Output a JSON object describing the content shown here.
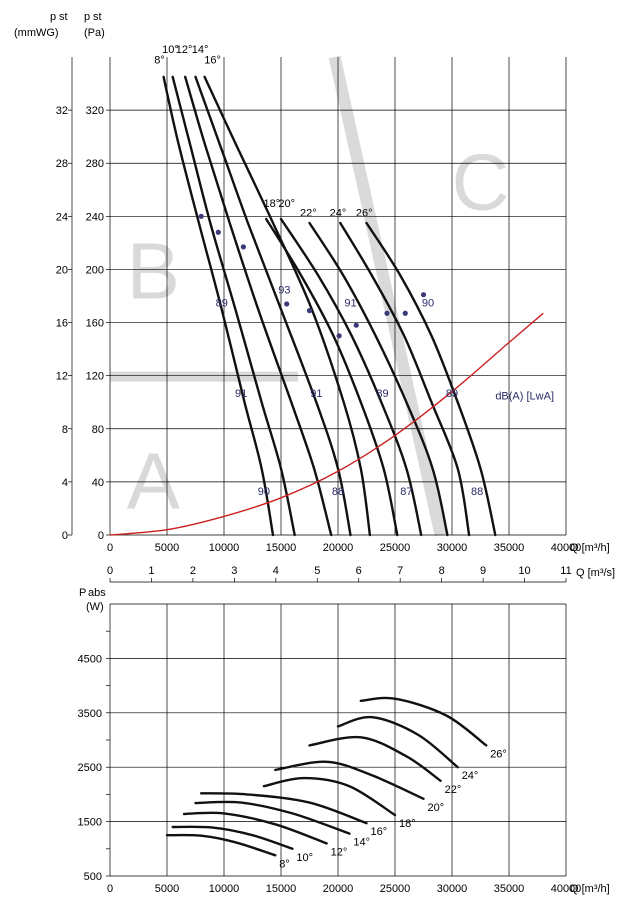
{
  "chart_data": [
    {
      "type": "line",
      "title": "",
      "ylabel_left": {
        "symbol": "p",
        "sub": "st",
        "unit": "(mmWG)"
      },
      "ylabel_right": {
        "symbol": "p",
        "sub": "st",
        "unit": "(Pa)"
      },
      "xlabel_m3h": "Q [m³/h]",
      "xlabel_m3s": "Q [m³/s]",
      "xlim": [
        0,
        40000
      ],
      "ylim": [
        0,
        360
      ],
      "x_ticks": [
        0,
        5000,
        10000,
        15000,
        20000,
        25000,
        30000,
        35000,
        40000
      ],
      "x_ticks_m3s": [
        0,
        1,
        2,
        3,
        4,
        5,
        6,
        7,
        8,
        9,
        10,
        11
      ],
      "y_ticks_pa": [
        0,
        40,
        80,
        120,
        160,
        200,
        240,
        280,
        320
      ],
      "y_ticks_mmwg": [
        0,
        4,
        8,
        12,
        16,
        20,
        24,
        28,
        32
      ],
      "regions": [
        "A",
        "B",
        "C"
      ],
      "series": [
        {
          "name": "8°",
          "x": [
            4700,
            6000,
            7800,
            9800,
            11800,
            13300,
            14300
          ],
          "y": [
            345,
            295,
            235,
            170,
            100,
            50,
            0
          ]
        },
        {
          "name": "10°",
          "x": [
            5500,
            7000,
            8800,
            11000,
            13300,
            15000,
            16200
          ],
          "y": [
            345,
            295,
            235,
            170,
            100,
            50,
            0
          ]
        },
        {
          "name": "12°",
          "x": [
            6600,
            8300,
            10500,
            13000,
            15900,
            17900,
            19400
          ],
          "y": [
            345,
            295,
            235,
            170,
            100,
            50,
            0
          ]
        },
        {
          "name": "14°",
          "x": [
            7500,
            9600,
            12100,
            15000,
            18100,
            20000,
            21100
          ],
          "y": [
            345,
            295,
            235,
            170,
            100,
            50,
            0
          ]
        },
        {
          "name": "16°",
          "x": [
            8300,
            11000,
            14300,
            17700,
            20500,
            22000,
            22800
          ],
          "y": [
            345,
            295,
            235,
            170,
            100,
            50,
            0
          ]
        },
        {
          "name": "18°",
          "x": [
            13700,
            16800,
            19600,
            22000,
            24000,
            25200
          ],
          "y": [
            238,
            195,
            150,
            100,
            50,
            0
          ]
        },
        {
          "name": "20°",
          "x": [
            15000,
            18300,
            21200,
            23800,
            26000,
            27300
          ],
          "y": [
            238,
            195,
            150,
            100,
            50,
            0
          ]
        },
        {
          "name": "22°",
          "x": [
            17500,
            20500,
            23300,
            26000,
            28300,
            29600
          ],
          "y": [
            235,
            195,
            150,
            100,
            50,
            0
          ]
        },
        {
          "name": "24°",
          "x": [
            20200,
            23000,
            25800,
            28200,
            30500,
            31500
          ],
          "y": [
            235,
            195,
            150,
            100,
            50,
            0
          ]
        },
        {
          "name": "26°",
          "x": [
            22500,
            25500,
            28200,
            30500,
            32500,
            33800
          ],
          "y": [
            235,
            195,
            150,
            100,
            50,
            0
          ]
        }
      ],
      "noise_curve": {
        "name": "dB(A) [LwA]",
        "x": [
          0,
          5000,
          10000,
          15000,
          20000,
          25000,
          30000,
          35000,
          38000
        ],
        "y": [
          0,
          4,
          14,
          28,
          48,
          75,
          108,
          145,
          167
        ]
      },
      "efficiency_labels": [
        "89",
        "91",
        "90",
        "93",
        "91",
        "88",
        "91",
        "89",
        "87",
        "90",
        "89",
        "88"
      ],
      "blade_labels": [
        "8°",
        "10°",
        "12°",
        "14°",
        "16°",
        "18°",
        "20°",
        "22°",
        "24°",
        "26°"
      ],
      "grid": true
    },
    {
      "type": "line",
      "title": "",
      "ylabel": {
        "symbol": "P",
        "sub": "abs",
        "unit": "(W)"
      },
      "xlabel": "Q [m³/h]",
      "xlim": [
        0,
        40000
      ],
      "ylim": [
        500,
        5500
      ],
      "x_ticks": [
        0,
        5000,
        10000,
        15000,
        20000,
        25000,
        30000,
        35000,
        40000
      ],
      "y_ticks": [
        500,
        1500,
        2500,
        3500,
        4500
      ],
      "series": [
        {
          "name": "8°",
          "x": [
            5000,
            8000,
            11000,
            14500
          ],
          "y": [
            1250,
            1240,
            1120,
            880
          ]
        },
        {
          "name": "10°",
          "x": [
            5500,
            9000,
            12500,
            16000
          ],
          "y": [
            1400,
            1390,
            1250,
            1000
          ]
        },
        {
          "name": "12°",
          "x": [
            6500,
            10000,
            14500,
            19000
          ],
          "y": [
            1640,
            1650,
            1450,
            1100
          ]
        },
        {
          "name": "14°",
          "x": [
            7500,
            11500,
            16000,
            21000
          ],
          "y": [
            1840,
            1850,
            1650,
            1280
          ]
        },
        {
          "name": "16°",
          "x": [
            8000,
            12000,
            17500,
            22500
          ],
          "y": [
            2020,
            2000,
            1850,
            1470
          ]
        },
        {
          "name": "18°",
          "x": [
            13500,
            17000,
            21000,
            25000
          ],
          "y": [
            2150,
            2300,
            2150,
            1620
          ]
        },
        {
          "name": "20°",
          "x": [
            14500,
            19000,
            23000,
            27500
          ],
          "y": [
            2450,
            2600,
            2350,
            1920
          ]
        },
        {
          "name": "22°",
          "x": [
            17500,
            22000,
            26000,
            29000
          ],
          "y": [
            2900,
            3050,
            2700,
            2250
          ]
        },
        {
          "name": "24°",
          "x": [
            20000,
            23000,
            27000,
            30500
          ],
          "y": [
            3250,
            3420,
            3100,
            2500
          ]
        },
        {
          "name": "26°",
          "x": [
            22000,
            25000,
            29500,
            33000
          ],
          "y": [
            3720,
            3760,
            3450,
            2900
          ]
        }
      ],
      "grid": true
    }
  ]
}
